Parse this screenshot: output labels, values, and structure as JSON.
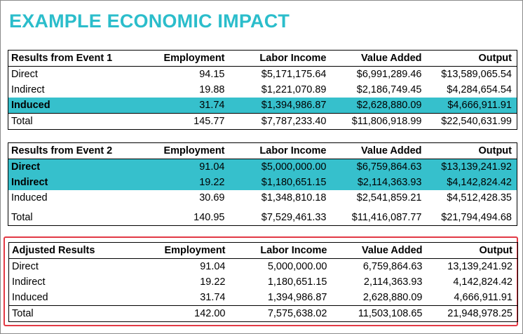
{
  "title": "EXAMPLE ECONOMIC IMPACT",
  "columns": [
    "Employment",
    "Labor Income",
    "Value Added",
    "Output"
  ],
  "tables": [
    {
      "heading": "Results from Event 1",
      "rows": [
        {
          "label": "Direct",
          "values": [
            "94.15",
            "$5,171,175.64",
            "$6,991,289.46",
            "$13,589,065.54"
          ]
        },
        {
          "label": "Indirect",
          "values": [
            "19.88",
            "$1,221,070.89",
            "$2,186,749.45",
            "$4,284,654.54"
          ]
        },
        {
          "label": "Induced",
          "values": [
            "31.74",
            "$1,394,986.87",
            "$2,628,880.09",
            "$4,666,911.91"
          ],
          "highlighted": true
        },
        {
          "label": "Total",
          "values": [
            "145.77",
            "$7,787,233.40",
            "$11,806,918.99",
            "$22,540,631.99"
          ]
        }
      ]
    },
    {
      "heading": "Results from Event 2",
      "rows": [
        {
          "label": "Direct",
          "values": [
            "91.04",
            "$5,000,000.00",
            "$6,759,864.63",
            "$13,139,241.92"
          ],
          "highlighted": true
        },
        {
          "label": "Indirect",
          "values": [
            "19.22",
            "$1,180,651.15",
            "$2,114,363.93",
            "$4,142,824.42"
          ],
          "highlighted": true
        },
        {
          "label": "Induced",
          "values": [
            "30.69",
            "$1,348,810.18",
            "$2,541,859.21",
            "$4,512,428.35"
          ]
        },
        {
          "label": "Total",
          "values": [
            "140.95",
            "$7,529,461.33",
            "$11,416,087.77",
            "$21,794,494.68"
          ]
        }
      ]
    },
    {
      "heading": "Adjusted Results",
      "rows": [
        {
          "label": "Direct",
          "values": [
            "91.04",
            "5,000,000.00",
            "6,759,864.63",
            "13,139,241.92"
          ]
        },
        {
          "label": "Indirect",
          "values": [
            "19.22",
            "1,180,651.15",
            "2,114,363.93",
            "4,142,824.42"
          ]
        },
        {
          "label": "Induced",
          "values": [
            "31.74",
            "1,394,986.87",
            "2,628,880.09",
            "4,666,911.91"
          ]
        },
        {
          "label": "Total",
          "values": [
            "142.00",
            "7,575,638.02",
            "11,503,108.65",
            "21,948,978.25"
          ]
        }
      ]
    }
  ],
  "colors": {
    "title": "#2bbdcb",
    "highlight": "#36c0cc",
    "adjusted_border": "#e23a45"
  }
}
